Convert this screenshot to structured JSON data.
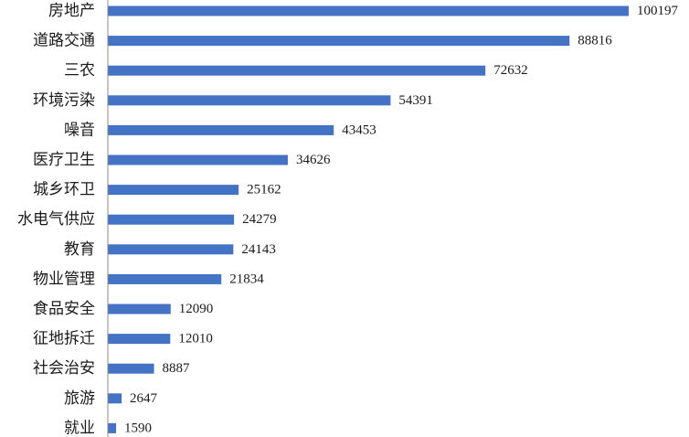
{
  "chart_data": {
    "type": "bar",
    "orientation": "horizontal",
    "categories": [
      "房地产",
      "道路交通",
      "三农",
      "环境污染",
      "噪音",
      "医疗卫生",
      "城乡环卫",
      "水电气供应",
      "教育",
      "物业管理",
      "食品安全",
      "征地拆迁",
      "社会治安",
      "旅游",
      "就业"
    ],
    "values": [
      100197,
      88816,
      72632,
      54391,
      43453,
      34626,
      25162,
      24279,
      24143,
      21834,
      12090,
      12010,
      8887,
      2647,
      1590
    ],
    "value_labels": [
      "100197",
      "88816",
      "72632",
      "54391",
      "43453",
      "34626",
      "25162",
      "24279",
      "24143",
      "21834",
      "12090",
      "12010",
      "8887",
      "2647",
      "1590"
    ],
    "xlim": [
      0,
      100197
    ],
    "bar_color": "#4472c4",
    "grid": false,
    "legend": "none",
    "data_labels": "outside-end"
  }
}
